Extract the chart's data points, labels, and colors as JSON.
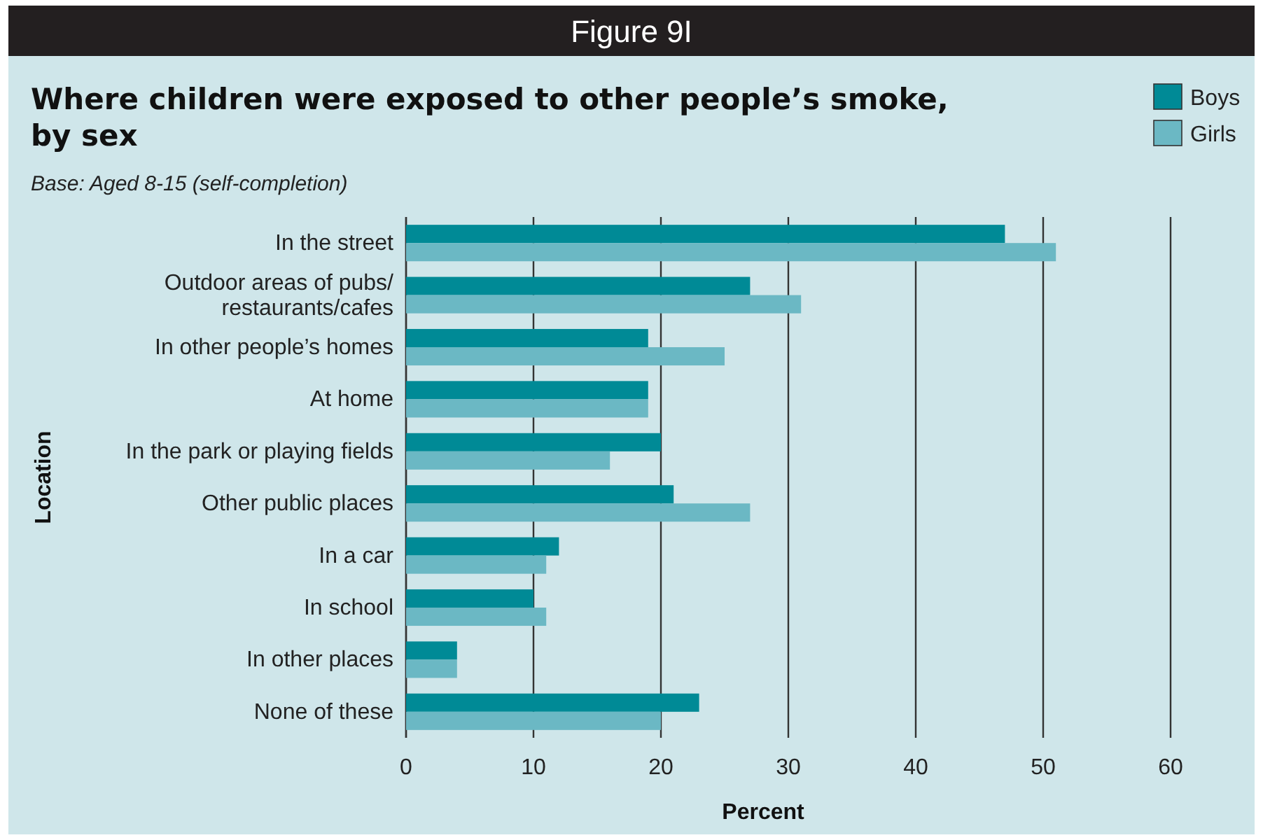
{
  "chart_data": {
    "type": "bar",
    "orientation": "horizontal",
    "title": "Where children were exposed to other people’s smoke, by sex",
    "subtitle": "Base: Aged 8-15 (self-completion)",
    "annotations": [
      "Figure 9I"
    ],
    "xlabel": "Percent",
    "ylabel": "Location",
    "categories": [
      "In the street",
      "Outdoor areas of pubs/\nrestaurants/cafes",
      "In other people’s homes",
      "At home",
      "In the park or playing fields",
      "Other public places",
      "In a car",
      "In school",
      "In other places",
      "None of these"
    ],
    "series": [
      {
        "name": "Boys",
        "color": "#008a96",
        "values": [
          47,
          27,
          19,
          19,
          20,
          21,
          12,
          10,
          4,
          23
        ]
      },
      {
        "name": "Girls",
        "color": "#6bb8c4",
        "values": [
          51,
          31,
          25,
          19,
          16,
          27,
          11,
          11,
          4,
          20
        ]
      }
    ],
    "xlim": [
      0,
      60
    ],
    "xticks": [
      0,
      10,
      20,
      30,
      40,
      50,
      60
    ],
    "grid": "x",
    "legend": "top right"
  }
}
